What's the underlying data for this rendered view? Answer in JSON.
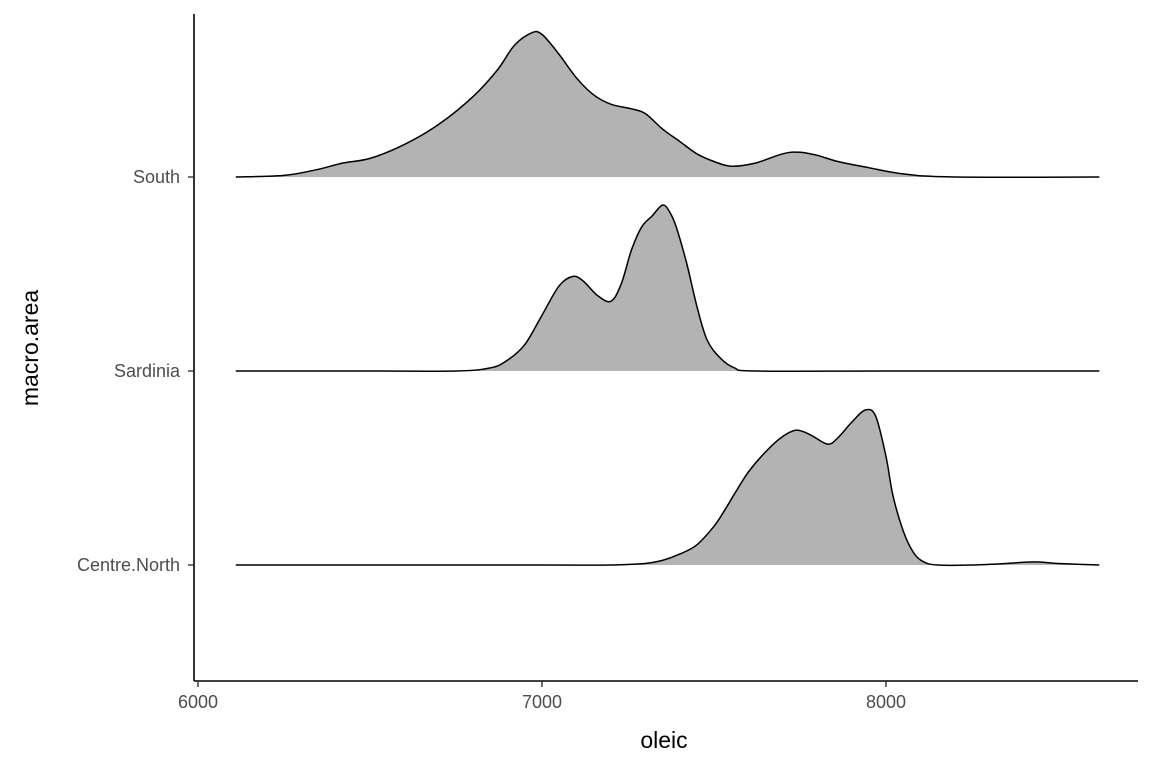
{
  "chart_data": {
    "type": "area",
    "subtype": "ridgeline-density",
    "title": "",
    "xlabel": "oleic",
    "ylabel": "macro.area",
    "xlim": [
      6100,
      8620
    ],
    "x_ticks": [
      6000,
      7000,
      8000
    ],
    "x_tick_labels": [
      "6000",
      "7000",
      "8000"
    ],
    "categories": [
      "Centre.North",
      "Sardinia",
      "South"
    ],
    "fill_color": "#b3b3b3",
    "line_color": "#000000",
    "grid": false,
    "legend": "none",
    "series": [
      {
        "name": "Centre.North",
        "x": [
          6110,
          6500,
          7000,
          7200,
          7300,
          7350,
          7400,
          7450,
          7500,
          7530,
          7560,
          7600,
          7650,
          7700,
          7740,
          7780,
          7830,
          7860,
          7900,
          7940,
          7970,
          8000,
          8020,
          8050,
          8080,
          8110,
          8150,
          8250,
          8350,
          8430,
          8500,
          8620
        ],
        "density": [
          0.0,
          0.0,
          0.0,
          0.0,
          0.01,
          0.03,
          0.07,
          0.13,
          0.25,
          0.35,
          0.46,
          0.6,
          0.73,
          0.83,
          0.87,
          0.84,
          0.78,
          0.82,
          0.92,
          1.0,
          0.96,
          0.7,
          0.45,
          0.22,
          0.08,
          0.02,
          0.0,
          0.0,
          0.01,
          0.02,
          0.01,
          0.0
        ]
      },
      {
        "name": "Sardinia",
        "x": [
          6110,
          6500,
          6750,
          6850,
          6900,
          6950,
          7000,
          7050,
          7090,
          7120,
          7160,
          7200,
          7230,
          7260,
          7290,
          7320,
          7350,
          7370,
          7390,
          7420,
          7450,
          7480,
          7520,
          7560,
          7620,
          8000,
          8620
        ],
        "density": [
          0.0,
          0.0,
          0.0,
          0.02,
          0.07,
          0.17,
          0.36,
          0.55,
          0.61,
          0.58,
          0.49,
          0.45,
          0.56,
          0.78,
          0.93,
          1.0,
          1.07,
          1.03,
          0.93,
          0.7,
          0.42,
          0.2,
          0.08,
          0.02,
          0.0,
          0.0,
          0.0
        ]
      },
      {
        "name": "South",
        "x": [
          6110,
          6250,
          6350,
          6420,
          6500,
          6600,
          6700,
          6800,
          6870,
          6920,
          6970,
          7000,
          7050,
          7100,
          7150,
          7200,
          7260,
          7300,
          7350,
          7400,
          7450,
          7500,
          7550,
          7620,
          7700,
          7750,
          7800,
          7860,
          7950,
          8050,
          8200,
          8620
        ],
        "density": [
          0.0,
          0.01,
          0.05,
          0.09,
          0.12,
          0.21,
          0.34,
          0.52,
          0.69,
          0.85,
          0.93,
          0.92,
          0.79,
          0.64,
          0.53,
          0.47,
          0.44,
          0.41,
          0.31,
          0.23,
          0.15,
          0.1,
          0.07,
          0.09,
          0.15,
          0.16,
          0.14,
          0.1,
          0.06,
          0.02,
          0.0,
          0.0
        ]
      }
    ]
  }
}
